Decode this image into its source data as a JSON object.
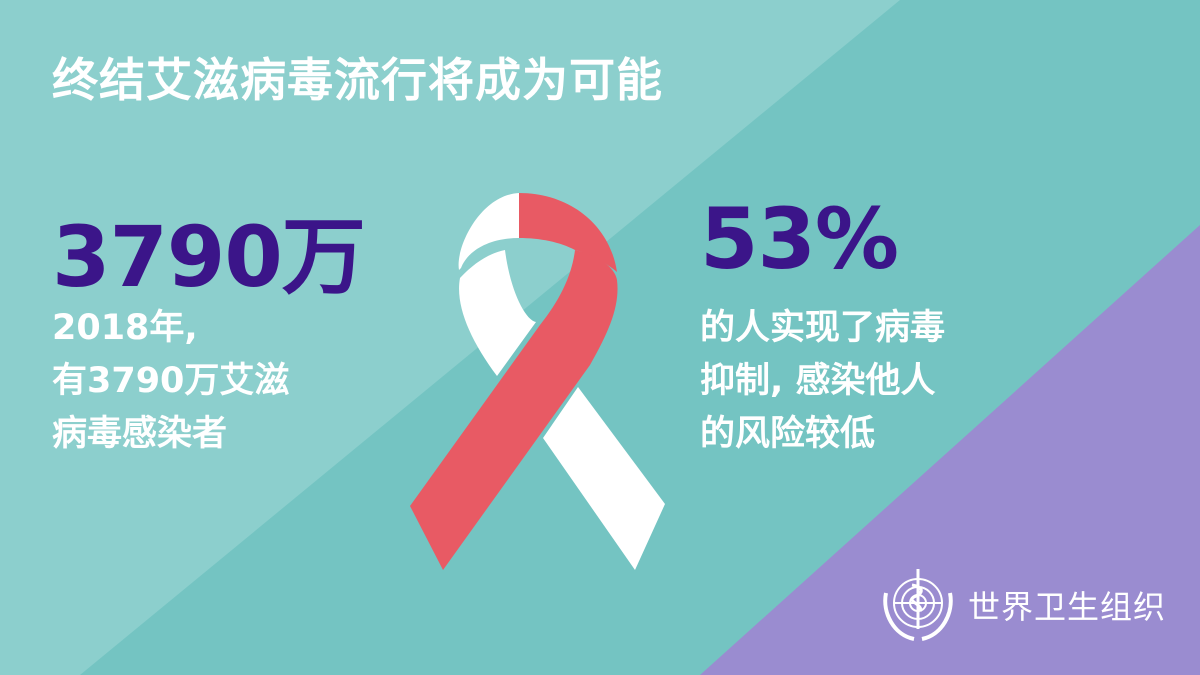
{
  "title": "终结艾滋病毒流行将成为可能",
  "left_stat": {
    "value": "3790万",
    "lines": [
      "2018年,",
      "有3790万艾滋",
      "病毒感染者"
    ]
  },
  "right_stat": {
    "value": "53%",
    "lines": [
      "的人实现了病毒",
      "抑制, 感染他人",
      "的风险较低"
    ]
  },
  "org_name": "世界卫生组织",
  "icons": {
    "ribbon": "aids-ribbon-icon",
    "logo": "who-emblem-icon"
  },
  "colors": {
    "background": "#74c4c2",
    "band": "#8ccfcd",
    "purple": "#9a8cd0",
    "stat": "#3b1589",
    "ribbon_red": "#e85a64"
  }
}
